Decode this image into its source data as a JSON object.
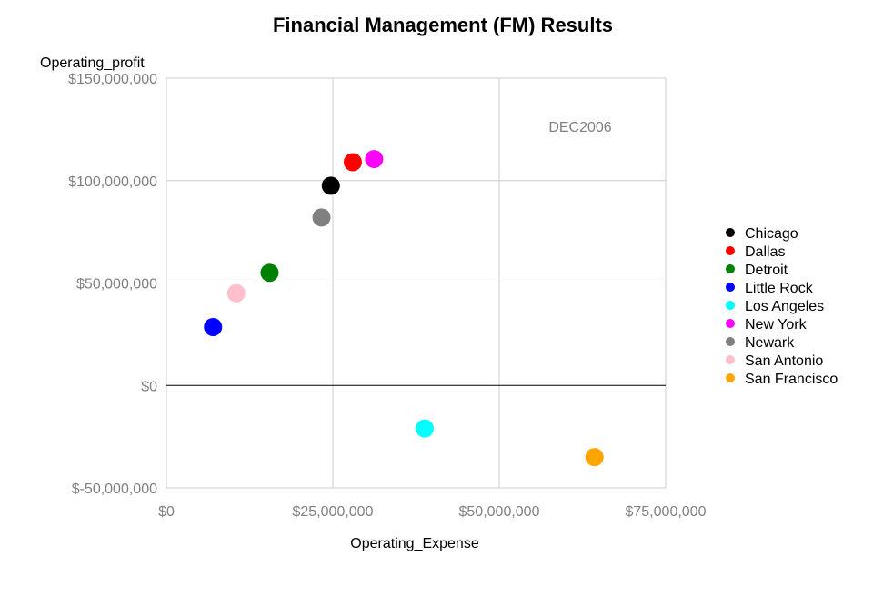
{
  "chart_data": {
    "type": "scatter",
    "title": "Financial Management (FM) Results",
    "xlabel": "Operating_Expense",
    "ylabel": "Operating_profit",
    "annotation": "DEC2006",
    "xlim": [
      0,
      75000000
    ],
    "ylim": [
      -50000000,
      150000000
    ],
    "x_ticks": [
      0,
      25000000,
      50000000,
      75000000
    ],
    "x_tick_labels": [
      "$0",
      "$25,000,000",
      "$50,000,000",
      "$75,000,000"
    ],
    "y_ticks": [
      -50000000,
      0,
      50000000,
      100000000,
      150000000
    ],
    "y_tick_labels": [
      "$-50,000,000",
      "$0",
      "$50,000,000",
      "$100,000,000",
      "$150,000,000"
    ],
    "grid": true,
    "legend_position": "right",
    "series": [
      {
        "name": "Chicago",
        "color": "#000000",
        "x": 24700000,
        "y": 97500000
      },
      {
        "name": "Dallas",
        "color": "#ff0000",
        "x": 28000000,
        "y": 109000000
      },
      {
        "name": "Detroit",
        "color": "#008000",
        "x": 15500000,
        "y": 55000000
      },
      {
        "name": "Little Rock",
        "color": "#0000ff",
        "x": 7000000,
        "y": 28500000
      },
      {
        "name": "Los Angeles",
        "color": "#00ffff",
        "x": 38800000,
        "y": -21000000
      },
      {
        "name": "New York",
        "color": "#ff00ff",
        "x": 31200000,
        "y": 110500000
      },
      {
        "name": "Newark",
        "color": "#808080",
        "x": 23300000,
        "y": 82000000
      },
      {
        "name": "San Antonio",
        "color": "#ffc0cb",
        "x": 10500000,
        "y": 45000000
      },
      {
        "name": "San Francisco",
        "color": "#ffa500",
        "x": 64300000,
        "y": -35000000
      }
    ]
  }
}
